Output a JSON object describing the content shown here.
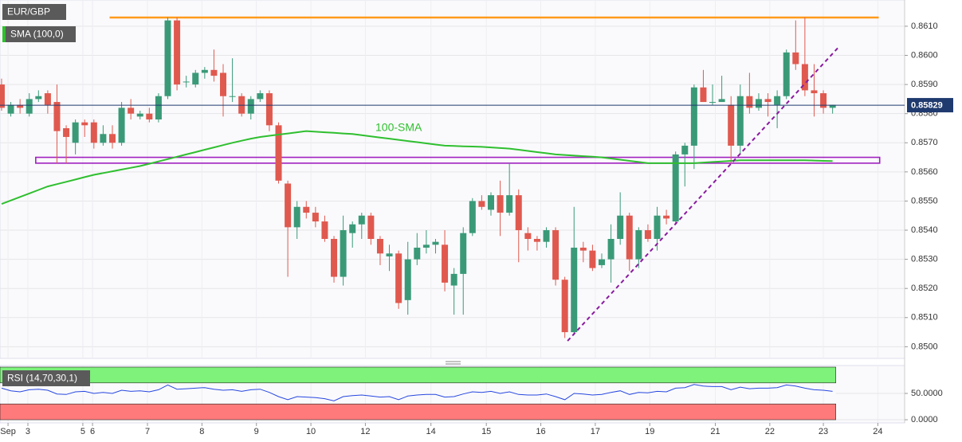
{
  "chart_data": {
    "type": "candlestick",
    "title": "EUR/GBP",
    "indicator_label": "SMA (100,0)",
    "annotation": "100-SMA",
    "up_color": "#3a9a78",
    "down_color": "#e0594f",
    "ohlc": [
      [
        0.859,
        0.8592,
        0.8581,
        0.8582
      ],
      [
        0.858,
        0.8584,
        0.8579,
        0.8583
      ],
      [
        0.8583,
        0.8585,
        0.858,
        0.8582
      ],
      [
        0.858,
        0.8587,
        0.8579,
        0.8585
      ],
      [
        0.8585,
        0.8588,
        0.8584,
        0.8586
      ],
      [
        0.8587,
        0.8588,
        0.858,
        0.8583
      ],
      [
        0.8584,
        0.859,
        0.8563,
        0.8574
      ],
      [
        0.8575,
        0.8576,
        0.8563,
        0.8572
      ],
      [
        0.857,
        0.8578,
        0.8566,
        0.8577
      ],
      [
        0.8577,
        0.8578,
        0.8572,
        0.8576
      ],
      [
        0.8577,
        0.8578,
        0.8568,
        0.857
      ],
      [
        0.857,
        0.8576,
        0.8569,
        0.8573
      ],
      [
        0.8573,
        0.8576,
        0.8568,
        0.857
      ],
      [
        0.857,
        0.8584,
        0.8569,
        0.8582
      ],
      [
        0.8582,
        0.8585,
        0.8578,
        0.858
      ],
      [
        0.8579,
        0.8581,
        0.8578,
        0.858
      ],
      [
        0.858,
        0.8582,
        0.8577,
        0.8578
      ],
      [
        0.8578,
        0.8587,
        0.8577,
        0.8586
      ],
      [
        0.8586,
        0.8613,
        0.8585,
        0.8612
      ],
      [
        0.8612,
        0.8613,
        0.8588,
        0.859
      ],
      [
        0.8591,
        0.8593,
        0.8589,
        0.8591
      ],
      [
        0.859,
        0.8595,
        0.8589,
        0.8594
      ],
      [
        0.8594,
        0.8596,
        0.8592,
        0.8595
      ],
      [
        0.8595,
        0.8602,
        0.8591,
        0.8593
      ],
      [
        0.8594,
        0.8597,
        0.8579,
        0.8586
      ],
      [
        0.8586,
        0.8599,
        0.8584,
        0.8586
      ],
      [
        0.8586,
        0.8587,
        0.8579,
        0.858
      ],
      [
        0.858,
        0.8586,
        0.8578,
        0.8585
      ],
      [
        0.8585,
        0.8588,
        0.8584,
        0.8587
      ],
      [
        0.8587,
        0.8588,
        0.8574,
        0.8576
      ],
      [
        0.8576,
        0.8577,
        0.8556,
        0.8557
      ],
      [
        0.8556,
        0.8557,
        0.8524,
        0.8541
      ],
      [
        0.8541,
        0.855,
        0.8537,
        0.8548
      ],
      [
        0.8548,
        0.855,
        0.8544,
        0.8546
      ],
      [
        0.8546,
        0.8548,
        0.8541,
        0.8543
      ],
      [
        0.8543,
        0.8545,
        0.8536,
        0.8537
      ],
      [
        0.8537,
        0.8538,
        0.8522,
        0.8524
      ],
      [
        0.8524,
        0.8545,
        0.8521,
        0.854
      ],
      [
        0.8539,
        0.8543,
        0.8534,
        0.8542
      ],
      [
        0.8542,
        0.8546,
        0.8537,
        0.8545
      ],
      [
        0.8545,
        0.8546,
        0.8535,
        0.8537
      ],
      [
        0.8537,
        0.8538,
        0.8528,
        0.8532
      ],
      [
        0.8531,
        0.8535,
        0.8526,
        0.8532
      ],
      [
        0.8532,
        0.8533,
        0.8513,
        0.8515
      ],
      [
        0.8516,
        0.8536,
        0.8511,
        0.853
      ],
      [
        0.853,
        0.8539,
        0.8528,
        0.8534
      ],
      [
        0.8534,
        0.854,
        0.8532,
        0.8535
      ],
      [
        0.8535,
        0.8537,
        0.8532,
        0.8536
      ],
      [
        0.8535,
        0.854,
        0.8519,
        0.8522
      ],
      [
        0.8521,
        0.8527,
        0.8511,
        0.8525
      ],
      [
        0.8525,
        0.8541,
        0.8511,
        0.8539
      ],
      [
        0.8539,
        0.8551,
        0.8538,
        0.855
      ],
      [
        0.855,
        0.8552,
        0.8547,
        0.8548
      ],
      [
        0.8547,
        0.8553,
        0.8545,
        0.8552
      ],
      [
        0.8552,
        0.8557,
        0.8538,
        0.8546
      ],
      [
        0.8546,
        0.8563,
        0.8545,
        0.8552
      ],
      [
        0.8552,
        0.8554,
        0.8529,
        0.854
      ],
      [
        0.8539,
        0.8541,
        0.8533,
        0.8537
      ],
      [
        0.8537,
        0.8538,
        0.8533,
        0.8536
      ],
      [
        0.8536,
        0.8541,
        0.8534,
        0.854
      ],
      [
        0.854,
        0.8541,
        0.8521,
        0.8523
      ],
      [
        0.8523,
        0.8524,
        0.8503,
        0.8505
      ],
      [
        0.8505,
        0.8548,
        0.8504,
        0.8534
      ],
      [
        0.8534,
        0.8536,
        0.8529,
        0.8533
      ],
      [
        0.8533,
        0.8535,
        0.8526,
        0.8527
      ],
      [
        0.8528,
        0.8532,
        0.8527,
        0.853
      ],
      [
        0.853,
        0.8542,
        0.8522,
        0.8537
      ],
      [
        0.8537,
        0.8553,
        0.8535,
        0.8545
      ],
      [
        0.8545,
        0.8546,
        0.8526,
        0.853
      ],
      [
        0.853,
        0.8541,
        0.8527,
        0.854
      ],
      [
        0.854,
        0.8542,
        0.8536,
        0.8537
      ],
      [
        0.8537,
        0.8548,
        0.8533,
        0.8545
      ],
      [
        0.8545,
        0.8547,
        0.8542,
        0.8544
      ],
      [
        0.8543,
        0.8567,
        0.8542,
        0.8566
      ],
      [
        0.8566,
        0.857,
        0.8555,
        0.8569
      ],
      [
        0.8569,
        0.859,
        0.8561,
        0.8589
      ],
      [
        0.8589,
        0.8595,
        0.8584,
        0.8584
      ],
      [
        0.8584,
        0.859,
        0.8583,
        0.8584
      ],
      [
        0.8584,
        0.8593,
        0.8584,
        0.8585
      ],
      [
        0.8583,
        0.8586,
        0.8563,
        0.8569
      ],
      [
        0.8569,
        0.859,
        0.8566,
        0.8586
      ],
      [
        0.8586,
        0.8594,
        0.858,
        0.8582
      ],
      [
        0.8582,
        0.8587,
        0.8581,
        0.8585
      ],
      [
        0.8585,
        0.8587,
        0.8579,
        0.8584
      ],
      [
        0.8583,
        0.8588,
        0.8575,
        0.8586
      ],
      [
        0.8586,
        0.8602,
        0.8585,
        0.8601
      ],
      [
        0.8601,
        0.8612,
        0.8595,
        0.8597
      ],
      [
        0.8597,
        0.8613,
        0.8586,
        0.8588
      ],
      [
        0.8588,
        0.8597,
        0.8579,
        0.8587
      ],
      [
        0.8587,
        0.8588,
        0.858,
        0.8582
      ],
      [
        0.8582,
        0.8583,
        0.858,
        0.8583
      ]
    ],
    "sma": {
      "color": "#2fbf2f",
      "values": [
        0.8549,
        0.85502,
        0.85514,
        0.85526,
        0.85538,
        0.8555,
        0.85558,
        0.85566,
        0.85574,
        0.85582,
        0.8559,
        0.85596,
        0.85602,
        0.85608,
        0.85614,
        0.8562,
        0.85628,
        0.85636,
        0.85644,
        0.85652,
        0.8566,
        0.85668,
        0.85676,
        0.85684,
        0.85692,
        0.857,
        0.85707,
        0.85714,
        0.8572,
        0.85724,
        0.85728,
        0.85732,
        0.85736,
        0.8574,
        0.85738,
        0.85736,
        0.85734,
        0.85732,
        0.8573,
        0.85726,
        0.85722,
        0.85718,
        0.85714,
        0.8571,
        0.85706,
        0.85702,
        0.85698,
        0.85694,
        0.8569,
        0.85689,
        0.85688,
        0.85687,
        0.85686,
        0.85684,
        0.85682,
        0.8568,
        0.85676,
        0.85672,
        0.85668,
        0.85664,
        0.8566,
        0.85658,
        0.85656,
        0.85654,
        0.85652,
        0.8565,
        0.85646,
        0.85642,
        0.85638,
        0.85634,
        0.8563,
        0.8563,
        0.8563,
        0.8563,
        0.8563,
        0.8563,
        0.85632,
        0.85634,
        0.85636,
        0.85638,
        0.8564,
        0.8564,
        0.8564,
        0.8564,
        0.8564,
        0.8564,
        0.8564,
        0.8564,
        0.85639,
        0.85638,
        0.85637
      ]
    },
    "last_price": 0.85829,
    "last_price_color": "#1f3a6e",
    "ylim": [
      0.8496,
      0.8619
    ],
    "yticks": [
      {
        "value": 0.85,
        "label": "0.8500"
      },
      {
        "value": 0.851,
        "label": "0.8510"
      },
      {
        "value": 0.852,
        "label": "0.8520"
      },
      {
        "value": 0.853,
        "label": "0.8530"
      },
      {
        "value": 0.854,
        "label": "0.8540"
      },
      {
        "value": 0.855,
        "label": "0.8550"
      },
      {
        "value": 0.856,
        "label": "0.8560"
      },
      {
        "value": 0.857,
        "label": "0.8570"
      },
      {
        "value": 0.858,
        "label": "0.8580"
      },
      {
        "value": 0.859,
        "label": "0.8590"
      },
      {
        "value": 0.86,
        "label": "0.8600"
      },
      {
        "value": 0.861,
        "label": "0.8610"
      }
    ],
    "xlim": [
      -0.17,
      97.8
    ],
    "xticks": [
      {
        "value": 0.7,
        "label": "Sep"
      },
      {
        "value": 2.85,
        "label": "3"
      },
      {
        "value": 8.8,
        "label": "5"
      },
      {
        "value": 9.85,
        "label": "6"
      },
      {
        "value": 15.8,
        "label": "7"
      },
      {
        "value": 21.7,
        "label": "8"
      },
      {
        "value": 27.6,
        "label": "9"
      },
      {
        "value": 33.5,
        "label": "10"
      },
      {
        "value": 39.4,
        "label": "12"
      },
      {
        "value": 46.5,
        "label": "14"
      },
      {
        "value": 52.5,
        "label": "15"
      },
      {
        "value": 58.4,
        "label": "16"
      },
      {
        "value": 64.3,
        "label": "17"
      },
      {
        "value": 70.2,
        "label": "19"
      },
      {
        "value": 77.3,
        "label": "21"
      },
      {
        "value": 83.2,
        "label": "22"
      },
      {
        "value": 89,
        "label": "23"
      },
      {
        "value": 94.9,
        "label": "24"
      }
    ],
    "grid": true,
    "resistance": {
      "x": [
        11.7,
        95
      ],
      "y": [
        0.8613,
        0.8613
      ],
      "color": "#ff9a1a"
    },
    "support_zone": {
      "x": [
        3.7,
        95.1
      ],
      "low": 0.8563,
      "high": 0.8565,
      "color": "#a020c0"
    },
    "trend_line": {
      "x": [
        61.3,
        90.7
      ],
      "y": [
        0.8502,
        0.8603
      ],
      "color": "#8a1aa0"
    },
    "rsi": {
      "label": "RSI (14,70,30,1)",
      "color": "#2747e0",
      "ylim": [
        -6,
        103
      ],
      "yticks": [
        {
          "value": 50,
          "label": "50.0000"
        },
        {
          "value": 0,
          "label": "0.0000"
        }
      ],
      "overbought": [
        70,
        100
      ],
      "oversold": [
        0,
        30
      ],
      "values": [
        60,
        55,
        53,
        57,
        58,
        56,
        49,
        48,
        53,
        54,
        50,
        52,
        50,
        56,
        54,
        55,
        53,
        57,
        66,
        58,
        59,
        60,
        61,
        58,
        56,
        57,
        54,
        57,
        58,
        52,
        44,
        38,
        44,
        43,
        42,
        40,
        36,
        44,
        46,
        47,
        45,
        43,
        44,
        38,
        45,
        47,
        48,
        48,
        43,
        44,
        49,
        53,
        52,
        54,
        50,
        53,
        48,
        47,
        47,
        49,
        44,
        38,
        50,
        49,
        47,
        48,
        52,
        55,
        48,
        52,
        51,
        54,
        53,
        60,
        61,
        67,
        64,
        63,
        63,
        57,
        62,
        59,
        60,
        60,
        61,
        66,
        64,
        60,
        57,
        56,
        54
      ]
    }
  }
}
